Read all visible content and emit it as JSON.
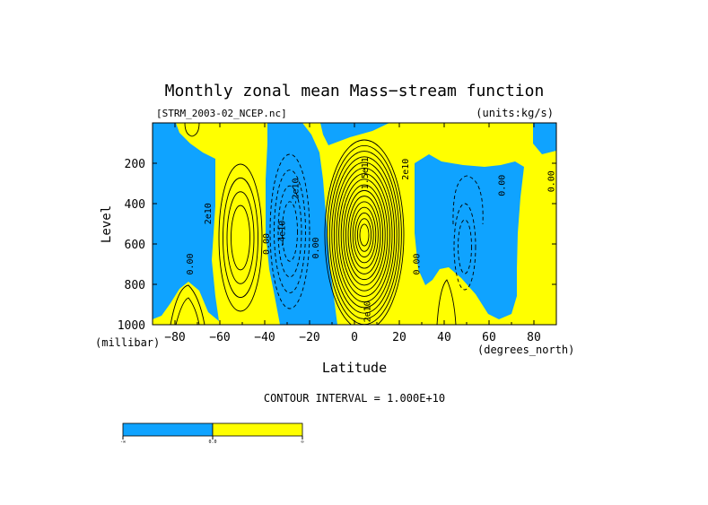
{
  "chart_data": {
    "type": "heatmap",
    "title": "Monthly zonal mean Mass−stream function",
    "file_label": "[STRM_2003-02_NCEP.nc]",
    "units_label": "(units:kg/s)",
    "xlabel": "Latitude",
    "x_units": "(degrees_north)",
    "ylabel": "Level",
    "y_units": "(millibar)",
    "xlim": [
      -90,
      90
    ],
    "ylim": [
      1000,
      0
    ],
    "x_ticks": [
      -80,
      -60,
      -40,
      -20,
      0,
      20,
      40,
      60,
      80
    ],
    "y_ticks": [
      200,
      400,
      600,
      800,
      1000
    ],
    "contour_interval_text": "CONTOUR INTERVAL = 1.000E+10",
    "contour_interval": 10000000000,
    "shading": {
      "negative": "#0fa3ff",
      "positive": "#ffff00"
    },
    "colorbar_labels": [
      "-∞",
      "0.0",
      "∞"
    ],
    "contour_labels": [
      {
        "text": "2e10",
        "lat": -64,
        "lev": 450
      },
      {
        "text": "0.00",
        "lat": -72,
        "lev": 700
      },
      {
        "text": "0.00",
        "lat": -38,
        "lev": 600
      },
      {
        "text": "-4e10",
        "lat": -31,
        "lev": 550
      },
      {
        "text": "-2e10",
        "lat": -25,
        "lev": 340
      },
      {
        "text": "0.00",
        "lat": -16,
        "lev": 620
      },
      {
        "text": "2e10",
        "lat": 7,
        "lev": 935
      },
      {
        "text": "1.5e11",
        "lat": 6,
        "lev": 250
      },
      {
        "text": "2e10",
        "lat": 24,
        "lev": 230
      },
      {
        "text": "0.00",
        "lat": 29,
        "lev": 700
      },
      {
        "text": "0.00",
        "lat": 67,
        "lev": 310
      },
      {
        "text": "0.00",
        "lat": 89,
        "lev": 290
      }
    ]
  }
}
